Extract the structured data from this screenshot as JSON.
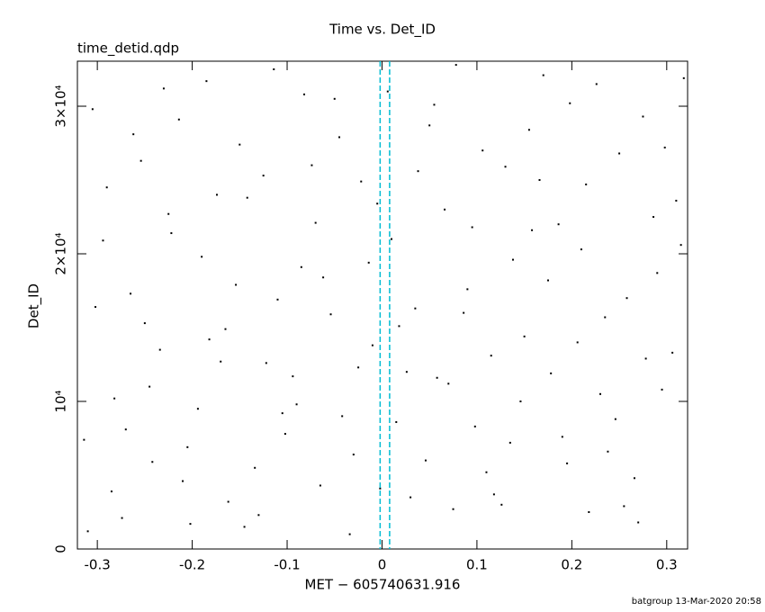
{
  "chart_data": {
    "type": "scatter",
    "title": "Time vs. Det_ID",
    "subtitle": "time_detid.qdp",
    "x_label": "MET − 605740631.916",
    "y_label": "Det_ID",
    "footer": "batgroup 13-Mar-2020 20:58",
    "xlim": [
      -0.321,
      0.322
    ],
    "ylim": [
      0,
      33050
    ],
    "xticks": [
      -0.3,
      -0.2,
      -0.1,
      0,
      0.1,
      0.2,
      0.3
    ],
    "yticks": [
      0,
      {
        "value": 10000,
        "label": "10⁴"
      },
      {
        "value": 20000,
        "label": "2×10⁴"
      },
      {
        "value": 30000,
        "label": "3×10⁴"
      }
    ],
    "color": "#000000",
    "vlines": [
      {
        "value": -0.002,
        "color": "#00bcd4"
      },
      {
        "value": 0.008,
        "color": "#00bcd4"
      }
    ],
    "x": [
      -0.31,
      -0.29,
      -0.27,
      -0.25,
      -0.23,
      -0.21,
      -0.19,
      -0.17,
      -0.15,
      -0.13,
      -0.11,
      -0.09,
      -0.07,
      -0.05,
      -0.03,
      -0.01,
      0.01,
      0.03,
      0.05,
      0.07,
      0.09,
      0.11,
      0.13,
      0.15,
      0.17,
      0.19,
      0.21,
      0.23,
      0.25,
      0.27,
      0.29,
      0.31,
      -0.305,
      -0.285,
      -0.265,
      -0.245,
      -0.225,
      -0.205,
      -0.185,
      -0.165,
      -0.145,
      -0.125,
      -0.105,
      -0.085,
      -0.065,
      -0.045,
      -0.025,
      -0.005,
      0.015,
      0.035,
      0.055,
      0.075,
      0.095,
      0.115,
      0.135,
      0.155,
      0.175,
      0.195,
      0.215,
      0.235,
      0.255,
      0.275,
      0.295,
      0.315,
      -0.314,
      -0.294,
      -0.274,
      -0.254,
      -0.234,
      -0.214,
      -0.194,
      -0.174,
      -0.154,
      -0.134,
      -0.114,
      -0.094,
      -0.074,
      -0.054,
      -0.034,
      -0.014,
      0.006,
      0.026,
      0.046,
      0.066,
      0.086,
      0.106,
      0.126,
      0.146,
      0.166,
      0.186,
      0.206,
      0.226,
      0.246,
      0.266,
      0.286,
      0.306,
      -0.302,
      -0.282,
      -0.262,
      -0.242,
      -0.222,
      -0.202,
      -0.182,
      -0.162,
      -0.142,
      -0.122,
      -0.102,
      -0.082,
      -0.062,
      -0.042,
      -0.022,
      -0.002,
      0.018,
      0.038,
      0.058,
      0.078,
      0.098,
      0.118,
      0.138,
      0.158,
      0.178,
      0.198,
      0.218,
      0.238,
      0.258,
      0.278,
      0.298,
      0.318
    ],
    "values": [
      1200,
      24500,
      8100,
      15300,
      31200,
      4600,
      19800,
      12700,
      27400,
      2300,
      16900,
      9800,
      22100,
      30500,
      6400,
      13800,
      21000,
      3500,
      28700,
      11200,
      17600,
      5200,
      25900,
      14400,
      32100,
      7600,
      20300,
      10500,
      26800,
      1800,
      18700,
      23600,
      29800,
      3900,
      17300,
      11000,
      22700,
      6900,
      31700,
      14900,
      1500,
      25300,
      9200,
      19100,
      4300,
      27900,
      12300,
      23400,
      8600,
      16300,
      30100,
      2700,
      21800,
      13100,
      7200,
      28400,
      18200,
      5800,
      24700,
      15700,
      2900,
      29300,
      10800,
      20600,
      7400,
      20900,
      2100,
      26300,
      13500,
      29100,
      9500,
      24000,
      17900,
      5500,
      32500,
      11700,
      26000,
      15900,
      1000,
      19400,
      31000,
      12000,
      6000,
      23000,
      16000,
      27000,
      3000,
      10000,
      25000,
      22000,
      14000,
      31500,
      8800,
      4800,
      22500,
      13300,
      16400,
      10200,
      28100,
      5900,
      21400,
      1700,
      14200,
      3200,
      23800,
      12600,
      7800,
      30800,
      18400,
      9000,
      24900,
      4100,
      15100,
      25600,
      11600,
      32800,
      8300,
      3700,
      19600,
      21600,
      11900,
      30200,
      2500,
      6600,
      17000,
      12900,
      27200,
      31900
    ]
  }
}
